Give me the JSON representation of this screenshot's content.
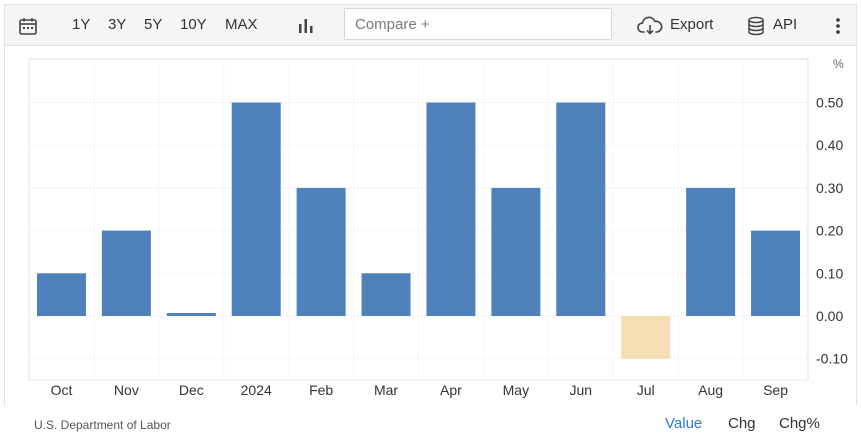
{
  "toolbar": {
    "ranges": [
      "1Y",
      "3Y",
      "5Y",
      "10Y",
      "MAX"
    ],
    "compare_placeholder": "Compare +",
    "export_label": "Export",
    "api_label": "API",
    "icons": [
      "calendar-icon",
      "bar-chart-icon",
      "cloud-download-icon",
      "database-icon",
      "more-vertical-icon"
    ]
  },
  "footer": {
    "source": "U.S. Department of Labor",
    "tabs": [
      "Value",
      "Chg",
      "Chg%"
    ],
    "active_tab": "Value"
  },
  "colors": {
    "positive_bar": "#4f81bd",
    "negative_bar": "#f5deb3",
    "active_tab": "#2a7ed3"
  },
  "chart_data": {
    "type": "bar",
    "unit": "%",
    "categories": [
      "Oct",
      "Nov",
      "Dec",
      "2024",
      "Feb",
      "Mar",
      "Apr",
      "May",
      "Jun",
      "Jul",
      "Aug",
      "Sep"
    ],
    "values": [
      0.1,
      0.2,
      0.0,
      0.5,
      0.3,
      0.1,
      0.5,
      0.3,
      0.5,
      -0.1,
      0.3,
      0.2
    ],
    "yticks": [
      "0.50",
      "0.40",
      "0.30",
      "0.20",
      "0.10",
      "0.00",
      "-0.10"
    ],
    "ylim": [
      -0.1,
      0.5
    ],
    "y_axis_position": "right",
    "grid": true
  }
}
